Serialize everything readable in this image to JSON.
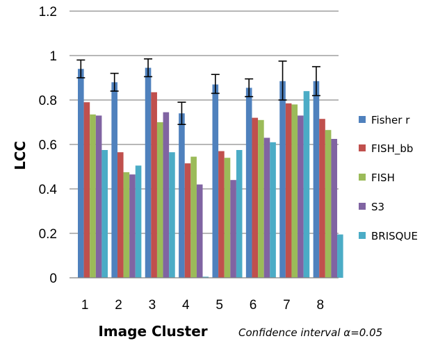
{
  "chart_data": {
    "type": "bar",
    "xlabel": "Image Cluster",
    "ylabel": "LCC",
    "ylim": [
      0,
      1.2
    ],
    "yticks": [
      "0",
      "0.2",
      "0.4",
      "0.6",
      "0.8",
      "1",
      "1.2"
    ],
    "grid": true,
    "legend_position": "right",
    "annotation": "Confidence interval α=0.05",
    "categories": [
      "1",
      "2",
      "3",
      "4",
      "5",
      "6",
      "7",
      "8"
    ],
    "series": [
      {
        "name": "Fisher r",
        "color": "#4F81BD",
        "values": [
          0.94,
          0.88,
          0.945,
          0.74,
          0.87,
          0.855,
          0.885,
          0.885
        ],
        "error_low": [
          0.9,
          0.84,
          0.905,
          0.69,
          0.83,
          0.815,
          0.8,
          0.82
        ],
        "error_high": [
          0.98,
          0.92,
          0.985,
          0.79,
          0.915,
          0.895,
          0.975,
          0.95
        ]
      },
      {
        "name": "FISH_bb",
        "color": "#C0504D",
        "values": [
          0.79,
          0.565,
          0.835,
          0.515,
          0.57,
          0.72,
          0.785,
          0.715
        ]
      },
      {
        "name": "FISH",
        "color": "#9BBB59",
        "values": [
          0.735,
          0.475,
          0.7,
          0.545,
          0.54,
          0.71,
          0.78,
          0.665
        ]
      },
      {
        "name": "S3",
        "color": "#8064A2",
        "values": [
          0.73,
          0.465,
          0.745,
          0.42,
          0.44,
          0.63,
          0.73,
          0.625
        ]
      },
      {
        "name": "BRISQUE",
        "color": "#4BACC6",
        "values": [
          0.575,
          0.505,
          0.565,
          0.005,
          0.575,
          0.61,
          0.84,
          0.195
        ]
      }
    ]
  }
}
